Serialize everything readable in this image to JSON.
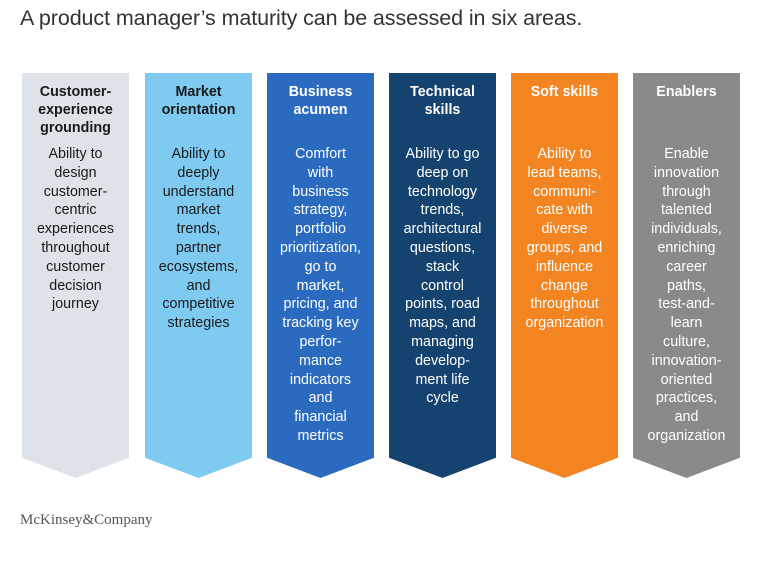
{
  "title": "A product manager’s maturity can be assessed in six areas.",
  "areas": [
    {
      "title": [
        "Customer-",
        "experience",
        "grounding"
      ],
      "body": [
        "Ability to",
        "design",
        "customer-",
        "centric",
        "experiences",
        "throughout",
        "customer",
        "decision",
        "journey"
      ],
      "color": "#dde3e8",
      "text_color": "#1a1a1a"
    },
    {
      "title": [
        "Market",
        "orientation"
      ],
      "body": [
        "Ability to",
        "deeply",
        "understand",
        "market",
        "trends,",
        "partner",
        "ecosystems,",
        "and",
        "competitive",
        "strategies"
      ],
      "color": "#7fcaf1",
      "text_color": "#1a1a1a"
    },
    {
      "title": [
        "Business",
        "acumen"
      ],
      "body": [
        "Comfort",
        "with",
        "business",
        "strategy,",
        "portfolio",
        "prioritization,",
        "go to",
        "market,",
        "pricing, and",
        "tracking key",
        "perfor-",
        "mance",
        "indicators",
        "and",
        "financial",
        "metrics"
      ],
      "color": "#2b6bbf",
      "text_color": "#ffffff"
    },
    {
      "title": [
        "Technical",
        "skills"
      ],
      "body": [
        "Ability to go",
        "deep on",
        "technology",
        "trends,",
        "architectural",
        "questions,",
        "stack",
        "control",
        "points, road",
        "maps, and",
        "managing",
        "develop-",
        "ment life",
        "cycle"
      ],
      "color": "#15436f",
      "text_color": "#ffffff"
    },
    {
      "title": [
        "Soft skills"
      ],
      "body": [
        "Ability to",
        "lead teams,",
        "communi-",
        "cate with",
        "diverse",
        "groups, and",
        "influence",
        "change",
        "throughout",
        "organization"
      ],
      "color": "#f28422",
      "text_color": "#ffffff"
    },
    {
      "title": [
        "Enablers"
      ],
      "body": [
        "Enable",
        "innovation",
        "through",
        "talented",
        "individuals,",
        "enriching",
        "career",
        "paths,",
        "test-and-",
        "learn",
        "culture,",
        "innovation-",
        "oriented",
        "practices,",
        "and",
        "organization"
      ],
      "color": "#8a8a8a",
      "text_color": "#ffffff"
    }
  ],
  "logo": "McKinsey&Company"
}
